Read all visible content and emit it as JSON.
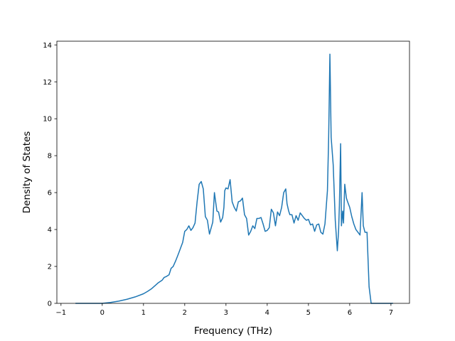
{
  "chart_data": {
    "type": "line",
    "xlabel": "Frequency (THz)",
    "ylabel": "Density of States",
    "xlim": [
      -1.1,
      7.45
    ],
    "ylim": [
      0,
      14.2
    ],
    "xticks": [
      -1,
      0,
      1,
      2,
      3,
      4,
      5,
      6,
      7
    ],
    "yticks": [
      0,
      2,
      4,
      6,
      8,
      10,
      12,
      14
    ],
    "grid": false,
    "legend": "none",
    "color": "#1f77b4",
    "series": [
      {
        "x": [
          -0.65,
          -0.3,
          0.0,
          0.2,
          0.4,
          0.6,
          0.8,
          1.0,
          1.1,
          1.2,
          1.3,
          1.35,
          1.45,
          1.5,
          1.55,
          1.62,
          1.67,
          1.72,
          1.78,
          1.85,
          1.9,
          1.95,
          2.0,
          2.05,
          2.1,
          2.15,
          2.2,
          2.25,
          2.3,
          2.35,
          2.4,
          2.45,
          2.5,
          2.55,
          2.6,
          2.63,
          2.68,
          2.72,
          2.78,
          2.82,
          2.87,
          2.92,
          2.95,
          2.97,
          3.0,
          3.05,
          3.1,
          3.15,
          3.2,
          3.25,
          3.3,
          3.35,
          3.4,
          3.45,
          3.5,
          3.55,
          3.6,
          3.65,
          3.7,
          3.75,
          3.8,
          3.85,
          3.9,
          3.95,
          4.0,
          4.05,
          4.1,
          4.15,
          4.2,
          4.25,
          4.3,
          4.35,
          4.4,
          4.45,
          4.48,
          4.52,
          4.55,
          4.6,
          4.65,
          4.7,
          4.75,
          4.8,
          4.85,
          4.9,
          4.95,
          5.0,
          5.05,
          5.1,
          5.15,
          5.2,
          5.25,
          5.3,
          5.35,
          5.4,
          5.43,
          5.46,
          5.49,
          5.52,
          5.55,
          5.6,
          5.65,
          5.7,
          5.73,
          5.75,
          5.78,
          5.8,
          5.83,
          5.85,
          5.88,
          5.92,
          5.95,
          6.0,
          6.05,
          6.1,
          6.15,
          6.2,
          6.25,
          6.3,
          6.33,
          6.37,
          6.42,
          6.47,
          6.52,
          6.6,
          6.8,
          7.05
        ],
        "y": [
          0,
          0,
          0,
          0.05,
          0.12,
          0.22,
          0.35,
          0.52,
          0.65,
          0.8,
          1.0,
          1.1,
          1.25,
          1.4,
          1.45,
          1.55,
          1.9,
          2.0,
          2.3,
          2.7,
          3.0,
          3.3,
          3.9,
          4.0,
          4.2,
          3.95,
          4.1,
          4.35,
          5.5,
          6.45,
          6.6,
          6.2,
          4.7,
          4.5,
          3.75,
          4.0,
          4.4,
          6.0,
          5.0,
          4.95,
          4.4,
          4.65,
          5.2,
          6.1,
          6.25,
          6.2,
          6.7,
          5.5,
          5.2,
          5.0,
          5.5,
          5.55,
          5.7,
          4.8,
          4.6,
          3.7,
          3.9,
          4.2,
          4.05,
          4.6,
          4.6,
          4.65,
          4.3,
          3.9,
          3.95,
          4.1,
          5.1,
          4.9,
          4.2,
          4.95,
          4.75,
          5.2,
          6.0,
          6.2,
          5.4,
          5.0,
          4.8,
          4.8,
          4.35,
          4.75,
          4.5,
          4.9,
          4.75,
          4.6,
          4.5,
          4.55,
          4.25,
          4.3,
          3.9,
          4.25,
          4.3,
          3.85,
          3.75,
          4.3,
          5.2,
          6.1,
          9.0,
          13.5,
          9.0,
          7.5,
          4.5,
          2.85,
          3.9,
          5.3,
          8.65,
          4.2,
          5.0,
          4.35,
          6.45,
          5.7,
          5.5,
          5.2,
          4.7,
          4.3,
          4.0,
          3.85,
          3.7,
          6.0,
          4.2,
          3.85,
          3.85,
          0.9,
          0,
          0,
          0,
          0
        ]
      }
    ]
  }
}
